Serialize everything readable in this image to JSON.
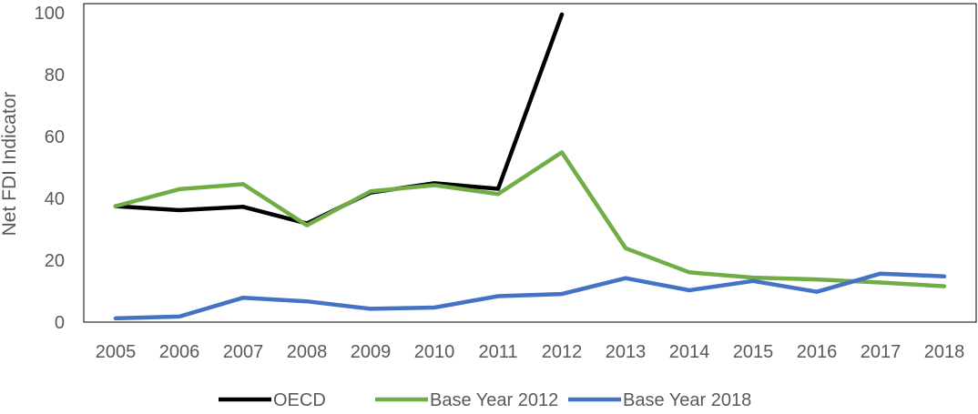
{
  "chart_data": {
    "type": "line",
    "title": "",
    "xlabel": "",
    "ylabel": "Net FDI Indicator",
    "x": [
      "2005",
      "2006",
      "2007",
      "2008",
      "2009",
      "2010",
      "2011",
      "2012",
      "2013",
      "2014",
      "2015",
      "2016",
      "2017",
      "2018"
    ],
    "ylim": [
      0,
      100
    ],
    "yticks": [
      0,
      20,
      40,
      60,
      80,
      100
    ],
    "grid": false,
    "legend_position": "bottom",
    "series": [
      {
        "name": "OECD",
        "color": "#000000",
        "values": [
          37.5,
          36.2,
          37.3,
          31.9,
          41.9,
          44.9,
          43.1,
          99.5,
          null,
          null,
          null,
          null,
          null,
          null
        ]
      },
      {
        "name": "Base Year 2012",
        "color": "#70AD47",
        "values": [
          37.5,
          43.0,
          44.6,
          31.3,
          42.3,
          44.3,
          41.4,
          54.9,
          23.9,
          16.1,
          14.4,
          13.8,
          12.8,
          11.6
        ]
      },
      {
        "name": "Base Year 2018",
        "color": "#4472C4",
        "values": [
          1.2,
          1.8,
          7.9,
          6.7,
          4.3,
          4.7,
          8.4,
          9.1,
          14.2,
          10.3,
          13.3,
          9.8,
          15.7,
          14.8
        ]
      }
    ]
  }
}
